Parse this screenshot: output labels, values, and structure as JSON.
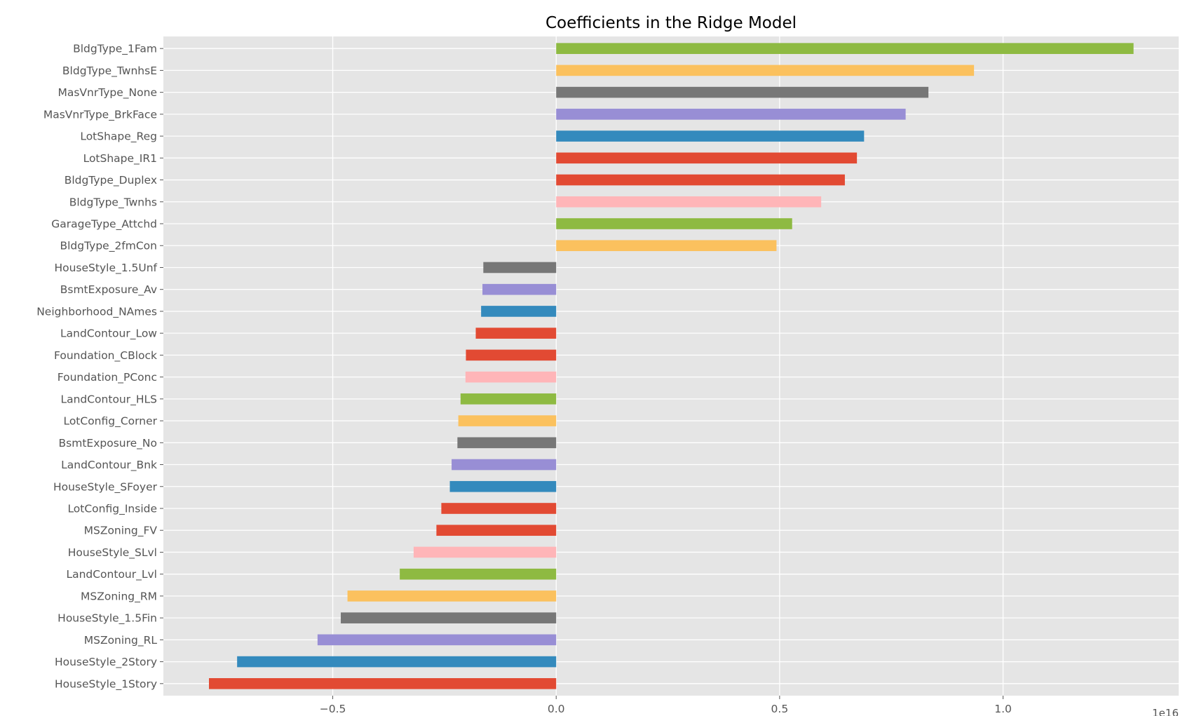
{
  "chart_data": {
    "type": "bar",
    "orientation": "horizontal",
    "title": "Coefficients in the Ridge Model",
    "xlabel": "",
    "ylabel": "",
    "axis_offset_label": "1e16",
    "xlim": [
      -0.879,
      1.393
    ],
    "x_ticks": [
      -0.5,
      0.0,
      0.5,
      1.0
    ],
    "x_tick_labels": [
      "−0.5",
      "0.0",
      "0.5",
      "1.0"
    ],
    "grid": true,
    "legend": "none",
    "style": "ggplot",
    "categories": [
      "BldgType_1Fam",
      "BldgType_TwnhsE",
      "MasVnrType_None",
      "MasVnrType_BrkFace",
      "LotShape_Reg",
      "LotShape_IR1",
      "BldgType_Duplex",
      "BldgType_Twnhs",
      "GarageType_Attchd",
      "BldgType_2fmCon",
      "HouseStyle_1.5Unf",
      "BsmtExposure_Av",
      "Neighborhood_NAmes",
      "LandContour_Low",
      "Foundation_CBlock",
      "Foundation_PConc",
      "LandContour_HLS",
      "LotConfig_Corner",
      "BsmtExposure_No",
      "LandContour_Bnk",
      "HouseStyle_SFoyer",
      "LotConfig_Inside",
      "MSZoning_FV",
      "HouseStyle_SLvl",
      "LandContour_Lvl",
      "MSZoning_RM",
      "HouseStyle_1.5Fin",
      "MSZoning_RL",
      "HouseStyle_2Story",
      "HouseStyle_1Story"
    ],
    "values": [
      1.292,
      0.935,
      0.833,
      0.782,
      0.689,
      0.673,
      0.646,
      0.593,
      0.528,
      0.493,
      -0.163,
      -0.165,
      -0.168,
      -0.18,
      -0.202,
      -0.203,
      -0.214,
      -0.219,
      -0.221,
      -0.234,
      -0.238,
      -0.257,
      -0.268,
      -0.319,
      -0.35,
      -0.467,
      -0.482,
      -0.534,
      -0.714,
      -0.777
    ],
    "bar_color_cycle": [
      "#8EBA42",
      "#FBC15E",
      "#777777",
      "#988ED5",
      "#348ABD",
      "#E24A33",
      "#E24A33",
      "#FFB5B8"
    ],
    "colors": {
      "plot_background": "#E5E5E5",
      "grid": "#FFFFFF",
      "tick_text": "#555555"
    }
  }
}
